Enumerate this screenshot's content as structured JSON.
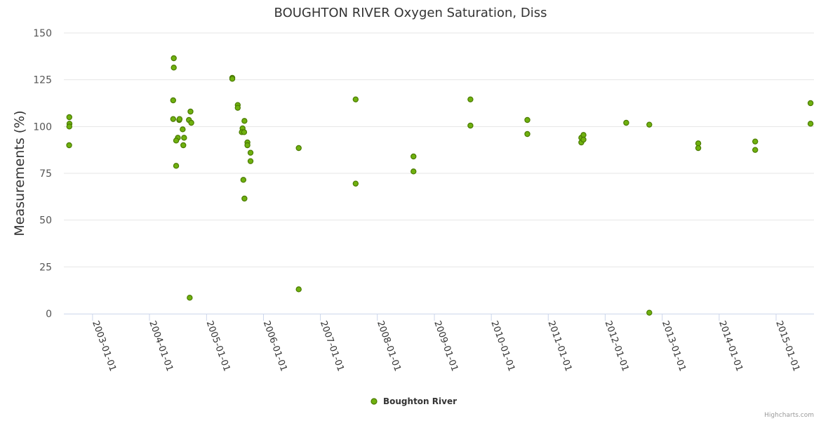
{
  "chart_data": {
    "type": "scatter",
    "title": "BOUGHTON RIVER Oxygen Saturation, Diss",
    "ylabel": "Measurements (%)",
    "xlabel": "",
    "ylim": [
      0,
      150
    ],
    "yticks": [
      0,
      25,
      50,
      75,
      100,
      125,
      150
    ],
    "xlim": [
      "2002-07-01",
      "2015-09-01"
    ],
    "xticks": [
      "2003-01-01",
      "2004-01-01",
      "2005-01-01",
      "2006-01-01",
      "2007-01-01",
      "2008-01-01",
      "2009-01-01",
      "2010-01-01",
      "2011-01-01",
      "2012-01-01",
      "2013-01-01",
      "2014-01-01",
      "2015-01-01"
    ],
    "grid": true,
    "legend_position": "bottom-center",
    "series": [
      {
        "name": "Boughton River",
        "color": "#6fb10f",
        "marker_border": "#4a7a00",
        "points": [
          [
            "2002-08-05",
            105
          ],
          [
            "2002-08-06",
            101.5
          ],
          [
            "2002-08-05",
            100
          ],
          [
            "2002-08-04",
            90
          ],
          [
            "2004-06-05",
            136.5
          ],
          [
            "2004-06-05",
            131.5
          ],
          [
            "2004-06-01",
            114
          ],
          [
            "2004-06-01",
            104
          ],
          [
            "2004-07-10",
            103.5
          ],
          [
            "2004-07-12",
            104
          ],
          [
            "2004-07-01",
            94
          ],
          [
            "2004-06-20",
            92.5
          ],
          [
            "2004-06-20",
            79
          ],
          [
            "2004-08-01",
            98.5
          ],
          [
            "2004-08-10",
            94
          ],
          [
            "2004-08-05",
            90
          ],
          [
            "2004-09-20",
            108
          ],
          [
            "2004-09-10",
            103.5
          ],
          [
            "2004-09-25",
            102
          ],
          [
            "2004-09-15",
            8.5
          ],
          [
            "2005-06-15",
            126
          ],
          [
            "2005-06-15",
            125.5
          ],
          [
            "2005-07-20",
            111.5
          ],
          [
            "2005-07-20",
            110
          ],
          [
            "2005-09-01",
            103
          ],
          [
            "2005-08-20",
            99
          ],
          [
            "2005-08-15",
            97
          ],
          [
            "2005-08-30",
            97
          ],
          [
            "2005-09-20",
            91.5
          ],
          [
            "2005-09-20",
            90
          ],
          [
            "2005-10-10",
            86
          ],
          [
            "2005-10-10",
            81.5
          ],
          [
            "2005-08-25",
            71.5
          ],
          [
            "2005-09-01",
            61.5
          ],
          [
            "2006-08-15",
            88.5
          ],
          [
            "2006-08-15",
            13
          ],
          [
            "2007-08-15",
            114.5
          ],
          [
            "2007-08-15",
            69.5
          ],
          [
            "2008-08-20",
            84
          ],
          [
            "2008-08-20",
            76
          ],
          [
            "2009-08-20",
            114.5
          ],
          [
            "2009-08-20",
            100.5
          ],
          [
            "2010-08-20",
            103.5
          ],
          [
            "2010-08-20",
            96
          ],
          [
            "2011-08-01",
            94
          ],
          [
            "2011-08-01",
            91.5
          ],
          [
            "2011-08-15",
            95.5
          ],
          [
            "2011-08-15",
            93
          ],
          [
            "2012-05-15",
            102
          ],
          [
            "2012-10-10",
            101
          ],
          [
            "2012-10-10",
            0.5
          ],
          [
            "2013-08-20",
            91
          ],
          [
            "2013-08-20",
            88.5
          ],
          [
            "2014-08-20",
            92
          ],
          [
            "2014-08-20",
            87.5
          ],
          [
            "2015-08-10",
            112.5
          ],
          [
            "2015-08-10",
            101.5
          ]
        ]
      }
    ]
  },
  "credits": "Highcharts.com"
}
